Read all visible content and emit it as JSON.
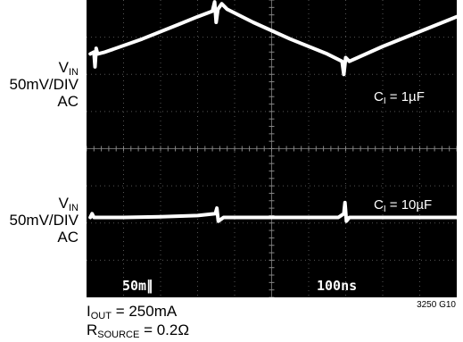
{
  "chart_data": {
    "type": "line",
    "background": "#000000",
    "trace_color": "#ffffff",
    "grid": "on",
    "x_divisions": 10,
    "y_divisions": 8,
    "channel_labels": [
      {
        "name_main": "V",
        "name_sub": "IN",
        "scale": "50mV/DIV",
        "coupling": "AC"
      },
      {
        "name_main": "V",
        "name_sub": "IN",
        "scale": "50mV/DIV",
        "coupling": "AC"
      }
    ],
    "annotations": [
      {
        "main": "C",
        "sub": "I",
        "rest": " = 1µF"
      },
      {
        "main": "C",
        "sub": "I",
        "rest": " = 10µF"
      }
    ],
    "scope_readouts": [
      "50m∥",
      "100ns"
    ],
    "conditions": [
      {
        "main": "I",
        "sub": "OUT",
        "rest": " = 250mA"
      },
      {
        "main": "R",
        "sub": "SOURCE",
        "rest": " = 0.2Ω"
      }
    ],
    "figure_id": "3250 G10",
    "series": [
      {
        "values_div": [
          [
            0.1,
            2.55
          ],
          [
            0.2,
            2.6
          ],
          [
            0.23,
            2.2
          ],
          [
            0.26,
            2.7
          ],
          [
            0.3,
            2.55
          ],
          [
            0.5,
            2.6
          ],
          [
            1.5,
            2.95
          ],
          [
            2.5,
            3.35
          ],
          [
            3.0,
            3.55
          ],
          [
            3.4,
            3.7
          ],
          [
            3.46,
            3.95
          ],
          [
            3.5,
            3.4
          ],
          [
            3.55,
            3.75
          ],
          [
            3.65,
            3.9
          ],
          [
            3.8,
            3.75
          ],
          [
            4.5,
            3.4
          ],
          [
            5.5,
            2.95
          ],
          [
            6.5,
            2.55
          ],
          [
            6.9,
            2.35
          ],
          [
            6.95,
            2.0
          ],
          [
            7.0,
            2.45
          ],
          [
            7.1,
            2.35
          ],
          [
            8.0,
            2.75
          ],
          [
            9.0,
            3.15
          ],
          [
            10.0,
            3.55
          ]
        ]
      },
      {
        "values_div": [
          [
            0.1,
            -1.85
          ],
          [
            0.15,
            -1.75
          ],
          [
            0.2,
            -1.85
          ],
          [
            1.0,
            -1.85
          ],
          [
            2.0,
            -1.83
          ],
          [
            3.0,
            -1.8
          ],
          [
            3.48,
            -1.75
          ],
          [
            3.52,
            -1.6
          ],
          [
            3.56,
            -1.95
          ],
          [
            3.7,
            -1.85
          ],
          [
            4.5,
            -1.85
          ],
          [
            5.5,
            -1.85
          ],
          [
            6.8,
            -1.85
          ],
          [
            6.95,
            -1.75
          ],
          [
            6.98,
            -1.45
          ],
          [
            7.02,
            -1.95
          ],
          [
            7.1,
            -1.85
          ],
          [
            8.5,
            -1.85
          ],
          [
            10.0,
            -1.85
          ]
        ]
      }
    ]
  }
}
